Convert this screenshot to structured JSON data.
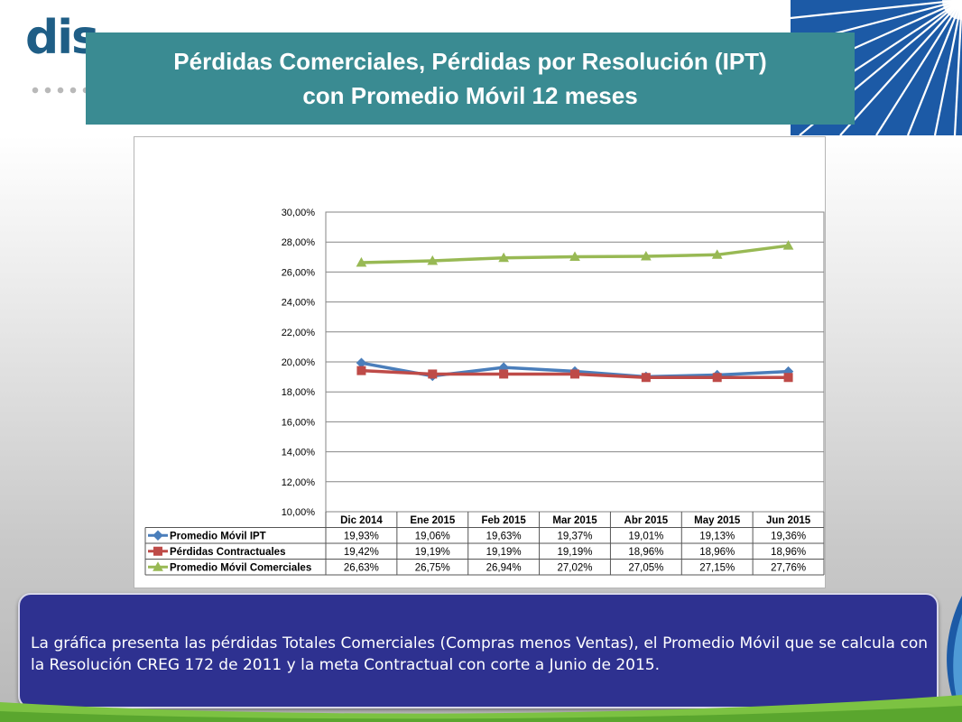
{
  "logo": {
    "text": "dis"
  },
  "title": "Pérdidas Comerciales, Pérdidas por Resolución (IPT)\ncon Promedio Móvil 12 meses",
  "caption": "La gráfica presenta las pérdidas Totales Comerciales (Compras menos Ventas), el Promedio Móvil  que se calcula con la Resolución CREG 172 de 2011 y la meta Contractual con corte a Junio de 2015.",
  "chart_data": {
    "type": "line",
    "title": "",
    "xlabel": "",
    "ylabel": "",
    "ylim": [
      10,
      30
    ],
    "y_ticks": [
      "10,00%",
      "12,00%",
      "14,00%",
      "16,00%",
      "18,00%",
      "20,00%",
      "22,00%",
      "24,00%",
      "26,00%",
      "28,00%",
      "30,00%"
    ],
    "grid": "horizontal",
    "legend": "data-table",
    "categories": [
      "Dic 2014",
      "Ene 2015",
      "Feb 2015",
      "Mar 2015",
      "Abr 2015",
      "May 2015",
      "Jun 2015"
    ],
    "series": [
      {
        "name": "Promedio Móvil IPT",
        "color": "#4a7ebb",
        "marker": "diamond",
        "values": [
          19.93,
          19.06,
          19.63,
          19.37,
          19.01,
          19.13,
          19.36
        ],
        "labels": [
          "19,93%",
          "19,06%",
          "19,63%",
          "19,37%",
          "19,01%",
          "19,13%",
          "19,36%"
        ]
      },
      {
        "name": "Pérdidas Contractuales",
        "color": "#be4b48",
        "marker": "square",
        "values": [
          19.42,
          19.19,
          19.19,
          19.19,
          18.96,
          18.96,
          18.96
        ],
        "labels": [
          "19,42%",
          "19,19%",
          "19,19%",
          "19,19%",
          "18,96%",
          "18,96%",
          "18,96%"
        ]
      },
      {
        "name": "Promedio Móvil Comerciales",
        "color": "#98b954",
        "marker": "triangle",
        "values": [
          26.63,
          26.75,
          26.94,
          27.02,
          27.05,
          27.15,
          27.76
        ],
        "labels": [
          "26,63%",
          "26,75%",
          "26,94%",
          "27,02%",
          "27,05%",
          "27,15%",
          "27,76%"
        ]
      }
    ]
  }
}
